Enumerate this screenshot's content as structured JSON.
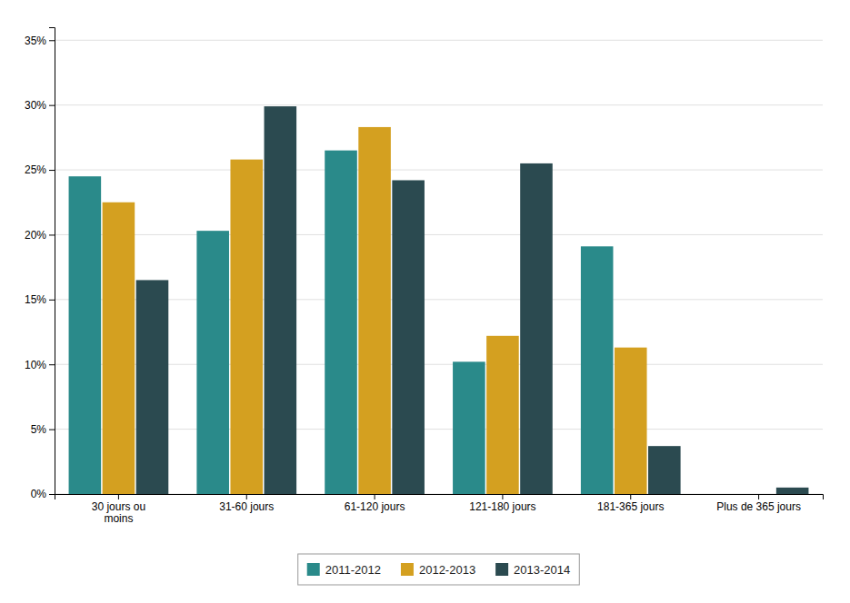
{
  "chart_data": {
    "type": "bar",
    "categories": [
      "30 jours ou\nmoins",
      "31-60 jours",
      "61-120 jours",
      "121-180 jours",
      "181-365 jours",
      "Plus de 365 jours"
    ],
    "series": [
      {
        "name": "2011-2012",
        "color": "#2A8A8A",
        "values": [
          0.245,
          0.203,
          0.265,
          0.102,
          0.191,
          0.0
        ]
      },
      {
        "name": "2012-2013",
        "color": "#D4A020",
        "values": [
          0.225,
          0.258,
          0.283,
          0.122,
          0.113,
          0.0
        ]
      },
      {
        "name": "2013-2014",
        "color": "#2B4A50",
        "values": [
          0.165,
          0.299,
          0.242,
          0.255,
          0.037,
          0.005
        ]
      }
    ],
    "ylim": [
      0,
      0.36
    ],
    "yticks": [
      {
        "value": 0.0,
        "label": "0%"
      },
      {
        "value": 0.05,
        "label": "5%"
      },
      {
        "value": 0.1,
        "label": "10%"
      },
      {
        "value": 0.15,
        "label": "15%"
      },
      {
        "value": 0.2,
        "label": "20%"
      },
      {
        "value": 0.25,
        "label": "25%"
      },
      {
        "value": 0.3,
        "label": "30%"
      },
      {
        "value": 0.35,
        "label": "35%"
      }
    ],
    "grid": true,
    "legend": "bottom"
  }
}
